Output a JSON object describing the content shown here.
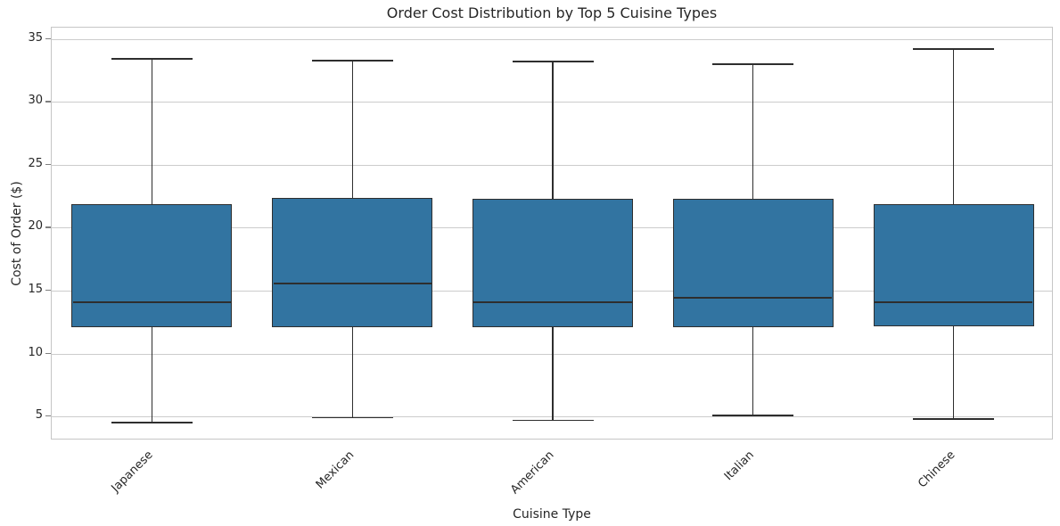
{
  "chart_data": {
    "type": "box",
    "title": "Order Cost Distribution by Top 5 Cuisine Types",
    "xlabel": "Cuisine Type",
    "ylabel": "Cost of Order ($)",
    "categories": [
      "Japanese",
      "Mexican",
      "American",
      "Italian",
      "Chinese"
    ],
    "series": [
      {
        "name": "Japanese",
        "whisker_low": 4.5,
        "q1": 12.1,
        "median": 14.1,
        "q3": 21.9,
        "whisker_high": 33.4
      },
      {
        "name": "Mexican",
        "whisker_low": 4.9,
        "q1": 12.1,
        "median": 15.6,
        "q3": 22.4,
        "whisker_high": 33.3
      },
      {
        "name": "American",
        "whisker_low": 4.7,
        "q1": 12.1,
        "median": 14.1,
        "q3": 22.3,
        "whisker_high": 33.2
      },
      {
        "name": "Italian",
        "whisker_low": 5.1,
        "q1": 12.1,
        "median": 14.4,
        "q3": 22.3,
        "whisker_high": 33.0
      },
      {
        "name": "Chinese",
        "whisker_low": 4.8,
        "q1": 12.2,
        "median": 14.1,
        "q3": 21.9,
        "whisker_high": 34.2
      }
    ],
    "yticks": [
      5,
      10,
      15,
      20,
      25,
      30,
      35
    ],
    "ylim": [
      3.1,
      35.9
    ],
    "grid": true,
    "legend": false,
    "colors": {
      "box_fill": "#3274a1",
      "box_edge": "#2e2e2e",
      "grid_line": "#cccccc",
      "spine": "#c6c6c6",
      "text": "#262626"
    }
  }
}
